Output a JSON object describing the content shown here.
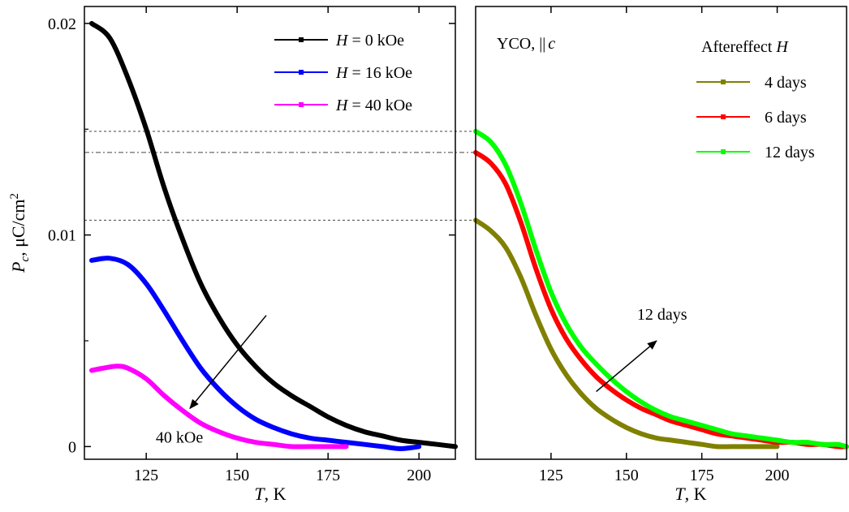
{
  "chart_data": [
    {
      "type": "line",
      "panel": "left",
      "xlabel": {
        "italic": "T",
        "rest": ", K"
      },
      "ylabel": {
        "italic": "P",
        "sub": "c",
        "rest": ", μC/cm",
        "sup": "2"
      },
      "xlim": [
        108,
        210
      ],
      "ylim": [
        -0.0006,
        0.0208
      ],
      "xticks": [
        125,
        150,
        175,
        200
      ],
      "yticks": [
        {
          "value": 0,
          "label": "0"
        },
        {
          "value": 0.01,
          "label": "0.01"
        },
        {
          "value": 0.02,
          "label": "0.02"
        }
      ],
      "legend_position": "top-right",
      "series": [
        {
          "name": "H = 0 kOe",
          "name_italic": "H",
          "name_rest": " = 0 kOe",
          "color": "#000000",
          "x": [
            110,
            115,
            120,
            125,
            130,
            135,
            140,
            145,
            150,
            155,
            160,
            165,
            170,
            175,
            180,
            185,
            190,
            195,
            200,
            205,
            210
          ],
          "y": [
            0.02,
            0.0193,
            0.0174,
            0.015,
            0.0122,
            0.0098,
            0.0077,
            0.0061,
            0.0048,
            0.0038,
            0.003,
            0.0024,
            0.0019,
            0.0014,
            0.001,
            0.0007,
            0.0005,
            0.0003,
            0.0002,
            0.0001,
            0.0
          ]
        },
        {
          "name": "H = 16 kOe",
          "name_italic": "H",
          "name_rest": " = 16 kOe",
          "color": "#0000ff",
          "x": [
            110,
            115,
            120,
            125,
            130,
            135,
            140,
            145,
            150,
            155,
            160,
            165,
            170,
            175,
            180,
            185,
            190,
            195,
            200
          ],
          "y": [
            0.0088,
            0.0089,
            0.0086,
            0.0077,
            0.0064,
            0.005,
            0.0037,
            0.0027,
            0.0019,
            0.0013,
            0.0009,
            0.0006,
            0.0004,
            0.0003,
            0.0002,
            0.0001,
            0.0,
            -0.0001,
            0.0
          ]
        },
        {
          "name": "H = 40 kOe",
          "name_italic": "H",
          "name_rest": " = 40 kOe",
          "color": "#ff00ff",
          "x": [
            110,
            113,
            117,
            120,
            125,
            130,
            135,
            140,
            145,
            150,
            155,
            160,
            165,
            170,
            175,
            180
          ],
          "y": [
            0.0036,
            0.0037,
            0.0038,
            0.0037,
            0.0032,
            0.0024,
            0.0017,
            0.0011,
            0.0007,
            0.0004,
            0.0002,
            0.0001,
            0.0,
            0.0,
            0.0,
            0.0
          ]
        }
      ],
      "annotation": {
        "label": "40 kOe",
        "arrow_from": [
          158,
          0.0062
        ],
        "arrow_to": [
          137,
          0.0018
        ]
      }
    },
    {
      "type": "line",
      "panel": "right",
      "title": {
        "text": "YCO, ",
        "parallel": "||",
        "italic": "c"
      },
      "legend_title": {
        "text": "Aftereffect ",
        "italic": "H"
      },
      "xlabel": {
        "italic": "T",
        "rest": ", K"
      },
      "xlim": [
        100,
        223
      ],
      "ylim": [
        -0.0006,
        0.0208
      ],
      "xticks": [
        125,
        150,
        175,
        200
      ],
      "legend_position": "top-right",
      "series": [
        {
          "name": "4 days",
          "color": "#808000",
          "x": [
            100,
            105,
            110,
            115,
            120,
            125,
            130,
            135,
            140,
            145,
            150,
            155,
            160,
            165,
            170,
            175,
            180,
            185,
            190,
            195,
            200
          ],
          "y": [
            0.0107,
            0.0102,
            0.0094,
            0.008,
            0.0062,
            0.0046,
            0.0034,
            0.0025,
            0.0018,
            0.0013,
            0.0009,
            0.0006,
            0.0004,
            0.0003,
            0.0002,
            0.0001,
            0.0,
            0.0,
            0.0,
            0.0,
            0.0
          ]
        },
        {
          "name": "6 days",
          "color": "#ff0000",
          "x": [
            100,
            105,
            110,
            115,
            120,
            125,
            130,
            135,
            140,
            145,
            150,
            155,
            160,
            165,
            170,
            175,
            180,
            185,
            190,
            195,
            200,
            205,
            210,
            215,
            220,
            223
          ],
          "y": [
            0.0139,
            0.0134,
            0.0124,
            0.0106,
            0.0084,
            0.0065,
            0.0051,
            0.0041,
            0.0033,
            0.0027,
            0.0022,
            0.0018,
            0.0015,
            0.0012,
            0.001,
            0.0008,
            0.0006,
            0.0005,
            0.0004,
            0.0003,
            0.0002,
            0.0002,
            0.0001,
            0.0001,
            0.0,
            0.0
          ]
        },
        {
          "name": "12 days",
          "color": "#00ff00",
          "x": [
            100,
            105,
            110,
            115,
            120,
            125,
            130,
            135,
            140,
            145,
            150,
            155,
            160,
            165,
            170,
            175,
            180,
            185,
            190,
            195,
            200,
            205,
            210,
            215,
            220,
            223
          ],
          "y": [
            0.0149,
            0.0144,
            0.0133,
            0.0115,
            0.0093,
            0.0073,
            0.0058,
            0.0047,
            0.0039,
            0.0032,
            0.0026,
            0.0021,
            0.0017,
            0.0014,
            0.0012,
            0.001,
            0.0008,
            0.0006,
            0.0005,
            0.0004,
            0.0003,
            0.0002,
            0.0002,
            0.0001,
            0.0001,
            0.0
          ]
        }
      ],
      "annotation": {
        "label": "12 days",
        "arrow_from": [
          140,
          0.0026
        ],
        "arrow_to": [
          160,
          0.005
        ]
      }
    }
  ],
  "reference_lines": [
    0.0149,
    0.0139,
    0.0107
  ]
}
